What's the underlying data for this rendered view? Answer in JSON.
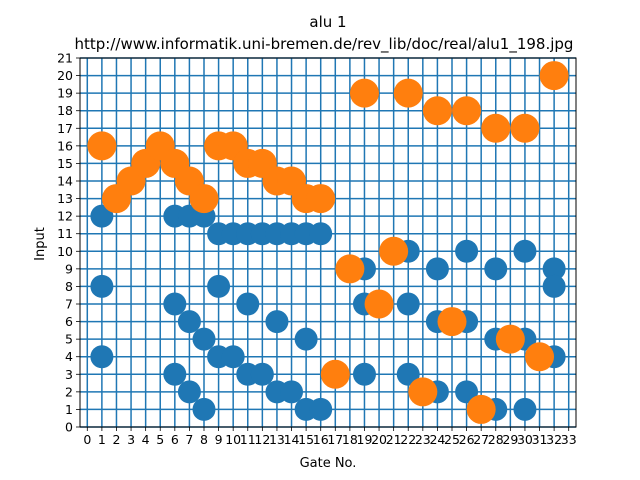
{
  "chart_data": {
    "type": "scatter",
    "title": "alu 1",
    "subtitle": "http://www.informatik.uni-bremen.de/rev_lib/doc/real/alu1_198.jpg",
    "xlabel": "Gate No.",
    "ylabel": "Input",
    "xlim": [
      -0.5,
      33.5
    ],
    "ylim": [
      0,
      21
    ],
    "x_ticks": [
      "0",
      "1",
      "2",
      "3",
      "4",
      "5",
      "6",
      "7",
      "8",
      "9",
      "10",
      "11",
      "12",
      "13",
      "14",
      "15",
      "16",
      "17",
      "18",
      "19",
      "20",
      "21",
      "22",
      "23",
      "24",
      "25",
      "26",
      "27",
      "28",
      "29",
      "30",
      "31",
      "32",
      "33"
    ],
    "y_ticks": [
      "0",
      "1",
      "2",
      "3",
      "4",
      "5",
      "6",
      "7",
      "8",
      "9",
      "10",
      "11",
      "12",
      "13",
      "14",
      "15",
      "16",
      "17",
      "18",
      "19",
      "20",
      "21"
    ],
    "grid": true,
    "series": [
      {
        "color": "#1f77b4",
        "points": [
          [
            1,
            12
          ],
          [
            1,
            8
          ],
          [
            1,
            4
          ],
          [
            6,
            12
          ],
          [
            6,
            7
          ],
          [
            6,
            3
          ],
          [
            7,
            12
          ],
          [
            7,
            6
          ],
          [
            7,
            2
          ],
          [
            8,
            12
          ],
          [
            8,
            5
          ],
          [
            8,
            1
          ],
          [
            9,
            11
          ],
          [
            9,
            8
          ],
          [
            9,
            4
          ],
          [
            10,
            11
          ],
          [
            10,
            4
          ],
          [
            11,
            11
          ],
          [
            11,
            7
          ],
          [
            11,
            3
          ],
          [
            12,
            11
          ],
          [
            12,
            3
          ],
          [
            13,
            11
          ],
          [
            13,
            6
          ],
          [
            13,
            2
          ],
          [
            14,
            11
          ],
          [
            14,
            2
          ],
          [
            15,
            11
          ],
          [
            15,
            5
          ],
          [
            15,
            1
          ],
          [
            16,
            11
          ],
          [
            16,
            1
          ],
          [
            19,
            9
          ],
          [
            19,
            7
          ],
          [
            19,
            3
          ],
          [
            22,
            10
          ],
          [
            22,
            7
          ],
          [
            22,
            3
          ],
          [
            24,
            9
          ],
          [
            24,
            6
          ],
          [
            24,
            2
          ],
          [
            26,
            10
          ],
          [
            26,
            6
          ],
          [
            26,
            2
          ],
          [
            28,
            9
          ],
          [
            28,
            5
          ],
          [
            28,
            1
          ],
          [
            30,
            10
          ],
          [
            30,
            5
          ],
          [
            30,
            1
          ],
          [
            32,
            9
          ],
          [
            32,
            8
          ],
          [
            32,
            4
          ]
        ]
      },
      {
        "color": "#ff7f0e",
        "points": [
          [
            1,
            16
          ],
          [
            2,
            13
          ],
          [
            3,
            14
          ],
          [
            4,
            15
          ],
          [
            5,
            16
          ],
          [
            6,
            15
          ],
          [
            7,
            14
          ],
          [
            8,
            13
          ],
          [
            9,
            16
          ],
          [
            10,
            16
          ],
          [
            11,
            15
          ],
          [
            12,
            15
          ],
          [
            13,
            14
          ],
          [
            14,
            14
          ],
          [
            15,
            13
          ],
          [
            16,
            13
          ],
          [
            17,
            3
          ],
          [
            18,
            9
          ],
          [
            19,
            19
          ],
          [
            20,
            7
          ],
          [
            21,
            10
          ],
          [
            22,
            19
          ],
          [
            23,
            2
          ],
          [
            24,
            18
          ],
          [
            25,
            6
          ],
          [
            26,
            18
          ],
          [
            27,
            1
          ],
          [
            28,
            17
          ],
          [
            29,
            5
          ],
          [
            30,
            17
          ],
          [
            31,
            4
          ],
          [
            32,
            20
          ]
        ]
      }
    ]
  }
}
